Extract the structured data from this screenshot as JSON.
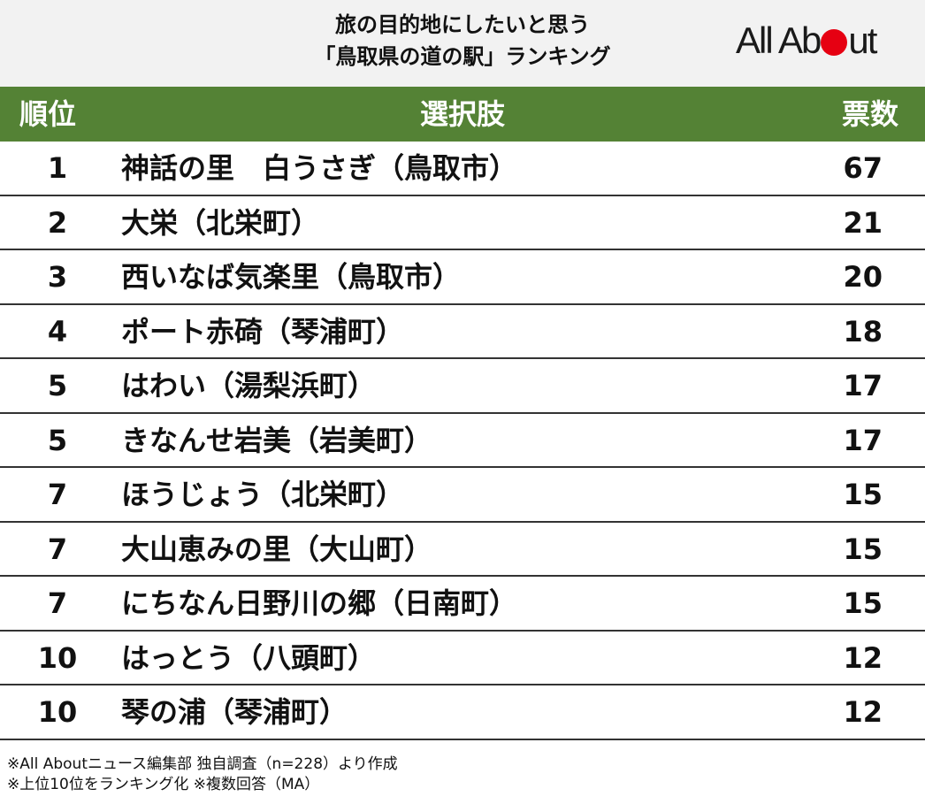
{
  "title": {
    "line1": "旅の目的地にしたいと思う",
    "line2": "「鳥取県の道の駅」ランキング"
  },
  "logo": {
    "text_before": "All Ab",
    "text_after": "ut",
    "brand_color": "#e60012"
  },
  "colors": {
    "header_green": "#548235",
    "header_bg": "#f2f2f2"
  },
  "table": {
    "headers": {
      "rank": "順位",
      "choice": "選択肢",
      "votes": "票数"
    },
    "rows": [
      {
        "rank": "1",
        "choice": "神話の里　白うさぎ（鳥取市）",
        "votes": "67"
      },
      {
        "rank": "2",
        "choice": "大栄（北栄町）",
        "votes": "21"
      },
      {
        "rank": "3",
        "choice": "西いなば気楽里（鳥取市）",
        "votes": "20"
      },
      {
        "rank": "4",
        "choice": "ポート赤碕（琴浦町）",
        "votes": "18"
      },
      {
        "rank": "5",
        "choice": "はわい（湯梨浜町）",
        "votes": "17"
      },
      {
        "rank": "5",
        "choice": "きなんせ岩美（岩美町）",
        "votes": "17"
      },
      {
        "rank": "7",
        "choice": "ほうじょう（北栄町）",
        "votes": "15"
      },
      {
        "rank": "7",
        "choice": "大山恵みの里（大山町）",
        "votes": "15"
      },
      {
        "rank": "7",
        "choice": "にちなん日野川の郷（日南町）",
        "votes": "15"
      },
      {
        "rank": "10",
        "choice": "はっとう（八頭町）",
        "votes": "12"
      },
      {
        "rank": "10",
        "choice": "琴の浦（琴浦町）",
        "votes": "12"
      }
    ]
  },
  "notes": {
    "line1": "※All Aboutニュース編集部 独自調査（n=228）より作成",
    "line2": "※上位10位をランキング化 ※複数回答（MA）"
  }
}
